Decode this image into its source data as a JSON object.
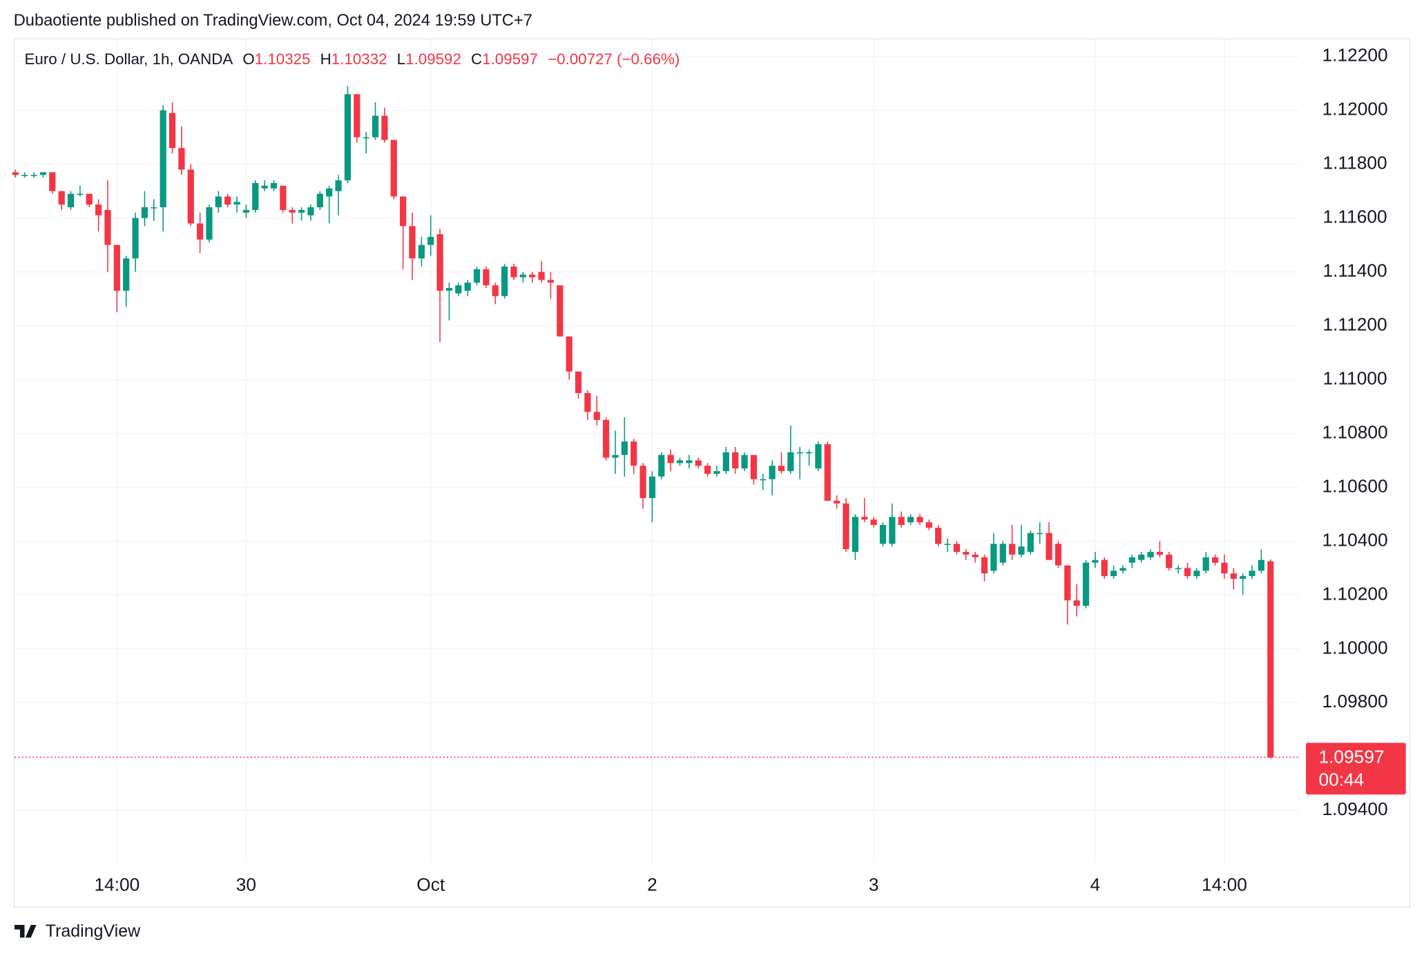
{
  "header": {
    "publisher": "Dubaotiente published on TradingView.com, Oct 04, 2024 19:59 UTC+7"
  },
  "footer": {
    "brand": "TradingView"
  },
  "chart_data": {
    "type": "candlestick",
    "legend": {
      "symbol": "Euro / U.S. Dollar, 1h, OANDA",
      "open_label": "O",
      "open": "1.10325",
      "high_label": "H",
      "high": "1.10332",
      "low_label": "L",
      "low": "1.09592",
      "close_label": "C",
      "close": "1.09597",
      "change": "−0.00727 (−0.66%)"
    },
    "up_color": "#089981",
    "down_color": "#f23645",
    "last_price_label": "1.09597",
    "countdown": "00:44",
    "ylim": [
      1.09204,
      1.12264
    ],
    "yticks": [
      {
        "value": 1.122,
        "label": "1.12200"
      },
      {
        "value": 1.12,
        "label": "1.12000"
      },
      {
        "value": 1.118,
        "label": "1.11800"
      },
      {
        "value": 1.116,
        "label": "1.11600"
      },
      {
        "value": 1.114,
        "label": "1.11400"
      },
      {
        "value": 1.112,
        "label": "1.11200"
      },
      {
        "value": 1.11,
        "label": "1.11000"
      },
      {
        "value": 1.108,
        "label": "1.10800"
      },
      {
        "value": 1.106,
        "label": "1.10600"
      },
      {
        "value": 1.104,
        "label": "1.10400"
      },
      {
        "value": 1.102,
        "label": "1.10200"
      },
      {
        "value": 1.1,
        "label": "1.10000"
      },
      {
        "value": 1.098,
        "label": "1.09800"
      },
      {
        "value": 1.096,
        "label": "1.09600"
      },
      {
        "value": 1.094,
        "label": "1.09400"
      }
    ],
    "grid": true,
    "categories": [
      null,
      null,
      null,
      null,
      null,
      null,
      null,
      null,
      null,
      null,
      null,
      "14:00",
      null,
      null,
      null,
      null,
      null,
      null,
      null,
      null,
      null,
      null,
      null,
      null,
      null,
      "30",
      null,
      null,
      null,
      null,
      null,
      null,
      null,
      null,
      null,
      null,
      null,
      null,
      null,
      null,
      null,
      null,
      null,
      null,
      null,
      "Oct",
      null,
      null,
      null,
      null,
      null,
      null,
      null,
      null,
      null,
      null,
      null,
      null,
      null,
      null,
      null,
      null,
      null,
      null,
      null,
      null,
      null,
      null,
      null,
      "2",
      null,
      null,
      null,
      null,
      null,
      null,
      null,
      null,
      null,
      null,
      null,
      null,
      null,
      null,
      null,
      null,
      null,
      null,
      null,
      null,
      null,
      null,
      null,
      "3",
      null,
      null,
      null,
      null,
      null,
      null,
      null,
      null,
      null,
      null,
      null,
      null,
      null,
      null,
      null,
      null,
      null,
      null,
      null,
      null,
      null,
      null,
      null,
      "4",
      null,
      null,
      null,
      null,
      null,
      null,
      null,
      null,
      null,
      null,
      null,
      null,
      null,
      "14:00",
      null,
      null,
      null,
      null,
      null
    ],
    "open": [
      1.1177,
      1.1176,
      1.1176,
      1.1176,
      1.1177,
      1.117,
      1.1164,
      1.1169,
      1.1169,
      1.1165,
      1.1163,
      1.115,
      1.1133,
      1.1145,
      1.116,
      1.1164,
      1.1164,
      1.1199,
      1.1186,
      1.1178,
      1.1158,
      1.1152,
      1.1164,
      1.1168,
      1.1165,
      1.1162,
      1.1163,
      1.1171,
      1.1171,
      1.1172,
      1.1163,
      1.1162,
      1.1161,
      1.1164,
      1.1168,
      1.117,
      1.1174,
      1.1206,
      1.119,
      1.119,
      1.1198,
      1.1189,
      1.1168,
      1.1157,
      1.1145,
      1.115,
      1.1154,
      1.1133,
      1.1132,
      1.1133,
      1.1136,
      1.1141,
      1.1135,
      1.1131,
      1.1142,
      1.1138,
      1.1139,
      1.114,
      1.1137,
      1.1135,
      1.1116,
      1.1103,
      1.1095,
      1.1088,
      1.1085,
      1.1071,
      1.1072,
      1.1077,
      1.1068,
      1.1056,
      1.1064,
      1.1072,
      1.1069,
      1.1069,
      1.107,
      1.1068,
      1.1065,
      1.1066,
      1.1073,
      1.1067,
      1.1072,
      1.1063,
      1.1063,
      1.1068,
      1.1066,
      1.1073,
      1.1073,
      1.1067,
      1.1076,
      1.1055,
      1.1054,
      1.1036,
      1.1049,
      1.1048,
      1.1039,
      1.1039,
      1.1049,
      1.1047,
      1.1049,
      1.1047,
      1.1045,
      1.1039,
      1.1039,
      1.1036,
      1.1035,
      1.1034,
      1.1029,
      1.1032,
      1.1039,
      1.1035,
      1.1036,
      1.1043,
      1.1043,
      1.1039,
      1.1031,
      1.1018,
      1.1016,
      1.1032,
      1.1033,
      1.1027,
      1.1029,
      1.1032,
      1.1033,
      1.1034,
      1.1036,
      1.1035,
      1.103,
      1.103,
      1.1027,
      1.1029,
      1.1034,
      1.1032,
      1.1028,
      1.1026,
      1.1027,
      1.1029,
      1.10325
    ],
    "high": [
      1.1178,
      1.1177,
      1.1177,
      1.1177,
      1.1177,
      1.117,
      1.117,
      1.1172,
      1.1169,
      1.1167,
      1.1174,
      1.115,
      1.1146,
      1.1162,
      1.117,
      1.1167,
      1.1202,
      1.1203,
      1.1194,
      1.118,
      1.1162,
      1.1165,
      1.117,
      1.1169,
      1.1168,
      1.1165,
      1.1174,
      1.1174,
      1.1174,
      1.1172,
      1.1164,
      1.1164,
      1.1165,
      1.117,
      1.1172,
      1.1176,
      1.1209,
      1.1206,
      1.1192,
      1.1203,
      1.1201,
      1.1189,
      1.1168,
      1.1162,
      1.1153,
      1.1161,
      1.1156,
      1.1136,
      1.1136,
      1.1137,
      1.1142,
      1.1142,
      1.1136,
      1.1143,
      1.1143,
      1.114,
      1.114,
      1.1144,
      1.114,
      1.1135,
      1.1116,
      1.1103,
      1.1096,
      1.1094,
      1.1086,
      1.1081,
      1.1086,
      1.1078,
      1.1069,
      1.1066,
      1.1073,
      1.1074,
      1.1071,
      1.1072,
      1.1071,
      1.1069,
      1.1068,
      1.1075,
      1.1075,
      1.1073,
      1.1072,
      1.1065,
      1.107,
      1.1073,
      1.1083,
      1.1075,
      1.1074,
      1.1077,
      1.1077,
      1.1057,
      1.1056,
      1.105,
      1.1056,
      1.1049,
      1.1047,
      1.1054,
      1.1051,
      1.105,
      1.105,
      1.1048,
      1.1046,
      1.1041,
      1.104,
      1.1037,
      1.1036,
      1.1035,
      1.1043,
      1.104,
      1.1046,
      1.1046,
      1.1044,
      1.1047,
      1.1047,
      1.104,
      1.1031,
      1.1024,
      1.1033,
      1.1036,
      1.1034,
      1.1031,
      1.1031,
      1.1035,
      1.1036,
      1.1037,
      1.104,
      1.1036,
      1.1031,
      1.1032,
      1.103,
      1.1036,
      1.1035,
      1.1035,
      1.103,
      1.1028,
      1.1031,
      1.1037,
      1.10332
    ],
    "low": [
      1.1175,
      1.1175,
      1.1175,
      1.1175,
      1.1169,
      1.1163,
      1.1163,
      1.1168,
      1.1164,
      1.1155,
      1.114,
      1.1125,
      1.1127,
      1.114,
      1.1157,
      1.1159,
      1.1155,
      1.1184,
      1.1176,
      1.1157,
      1.1147,
      1.1151,
      1.1162,
      1.1164,
      1.1162,
      1.116,
      1.1162,
      1.117,
      1.117,
      1.1162,
      1.1158,
      1.1159,
      1.1159,
      1.1163,
      1.1158,
      1.1161,
      1.1173,
      1.1188,
      1.1184,
      1.1189,
      1.1188,
      1.1167,
      1.1141,
      1.1137,
      1.1142,
      1.1146,
      1.1114,
      1.1122,
      1.1131,
      1.1131,
      1.1135,
      1.1134,
      1.1128,
      1.113,
      1.1137,
      1.1136,
      1.1136,
      1.1136,
      1.113,
      1.1116,
      1.11,
      1.1093,
      1.1085,
      1.1083,
      1.107,
      1.1065,
      1.1064,
      1.1065,
      1.1052,
      1.1047,
      1.1063,
      1.1066,
      1.1068,
      1.1067,
      1.1067,
      1.1064,
      1.1064,
      1.1065,
      1.1065,
      1.1066,
      1.1061,
      1.1059,
      1.1057,
      1.1065,
      1.1065,
      1.1063,
      1.1068,
      1.1066,
      1.1055,
      1.1052,
      1.1036,
      1.1033,
      1.1047,
      1.1045,
      1.1038,
      1.1038,
      1.1045,
      1.1046,
      1.1046,
      1.1044,
      1.1038,
      1.1036,
      1.1035,
      1.1033,
      1.1032,
      1.1025,
      1.1028,
      1.1031,
      1.1033,
      1.1034,
      1.1035,
      1.1039,
      1.1033,
      1.103,
      1.1009,
      1.1012,
      1.1015,
      1.103,
      1.1026,
      1.1026,
      1.1028,
      1.103,
      1.1032,
      1.1033,
      1.1034,
      1.1029,
      1.1028,
      1.1026,
      1.1026,
      1.1028,
      1.1031,
      1.1026,
      1.1022,
      1.102,
      1.1026,
      1.1028,
      1.09592
    ],
    "close": [
      1.1176,
      1.1176,
      1.1176,
      1.1177,
      1.117,
      1.1165,
      1.1169,
      1.1169,
      1.1165,
      1.1161,
      1.115,
      1.1133,
      1.1145,
      1.116,
      1.1164,
      1.1164,
      1.12,
      1.1186,
      1.1178,
      1.1158,
      1.1152,
      1.1164,
      1.1168,
      1.1165,
      1.1166,
      1.1163,
      1.1173,
      1.1172,
      1.1173,
      1.1163,
      1.1162,
      1.1163,
      1.1164,
      1.1169,
      1.1171,
      1.1174,
      1.1206,
      1.119,
      1.119,
      1.1198,
      1.1189,
      1.1168,
      1.1157,
      1.1145,
      1.115,
      1.1153,
      1.1133,
      1.1134,
      1.1135,
      1.1136,
      1.1141,
      1.1135,
      1.1131,
      1.1142,
      1.1138,
      1.1139,
      1.1138,
      1.1137,
      1.1136,
      1.1116,
      1.1103,
      1.1095,
      1.1088,
      1.1085,
      1.1071,
      1.1072,
      1.1077,
      1.1068,
      1.1056,
      1.1064,
      1.1072,
      1.1069,
      1.107,
      1.107,
      1.1068,
      1.1065,
      1.1066,
      1.1073,
      1.1067,
      1.1072,
      1.1063,
      1.1063,
      1.1068,
      1.1066,
      1.1073,
      1.1073,
      1.1073,
      1.1076,
      1.1055,
      1.1054,
      1.1037,
      1.1049,
      1.1048,
      1.1046,
      1.1046,
      1.1049,
      1.1046,
      1.1049,
      1.1047,
      1.1045,
      1.1039,
      1.1039,
      1.1036,
      1.1035,
      1.1034,
      1.1028,
      1.1039,
      1.1039,
      1.1035,
      1.1038,
      1.1043,
      1.1043,
      1.1033,
      1.1031,
      1.1018,
      1.1016,
      1.1032,
      1.1033,
      1.1027,
      1.1029,
      1.103,
      1.1034,
      1.1035,
      1.1036,
      1.1035,
      1.103,
      1.103,
      1.1027,
      1.1029,
      1.1034,
      1.1032,
      1.1028,
      1.1026,
      1.1027,
      1.1029,
      1.1033,
      1.09597
    ]
  }
}
